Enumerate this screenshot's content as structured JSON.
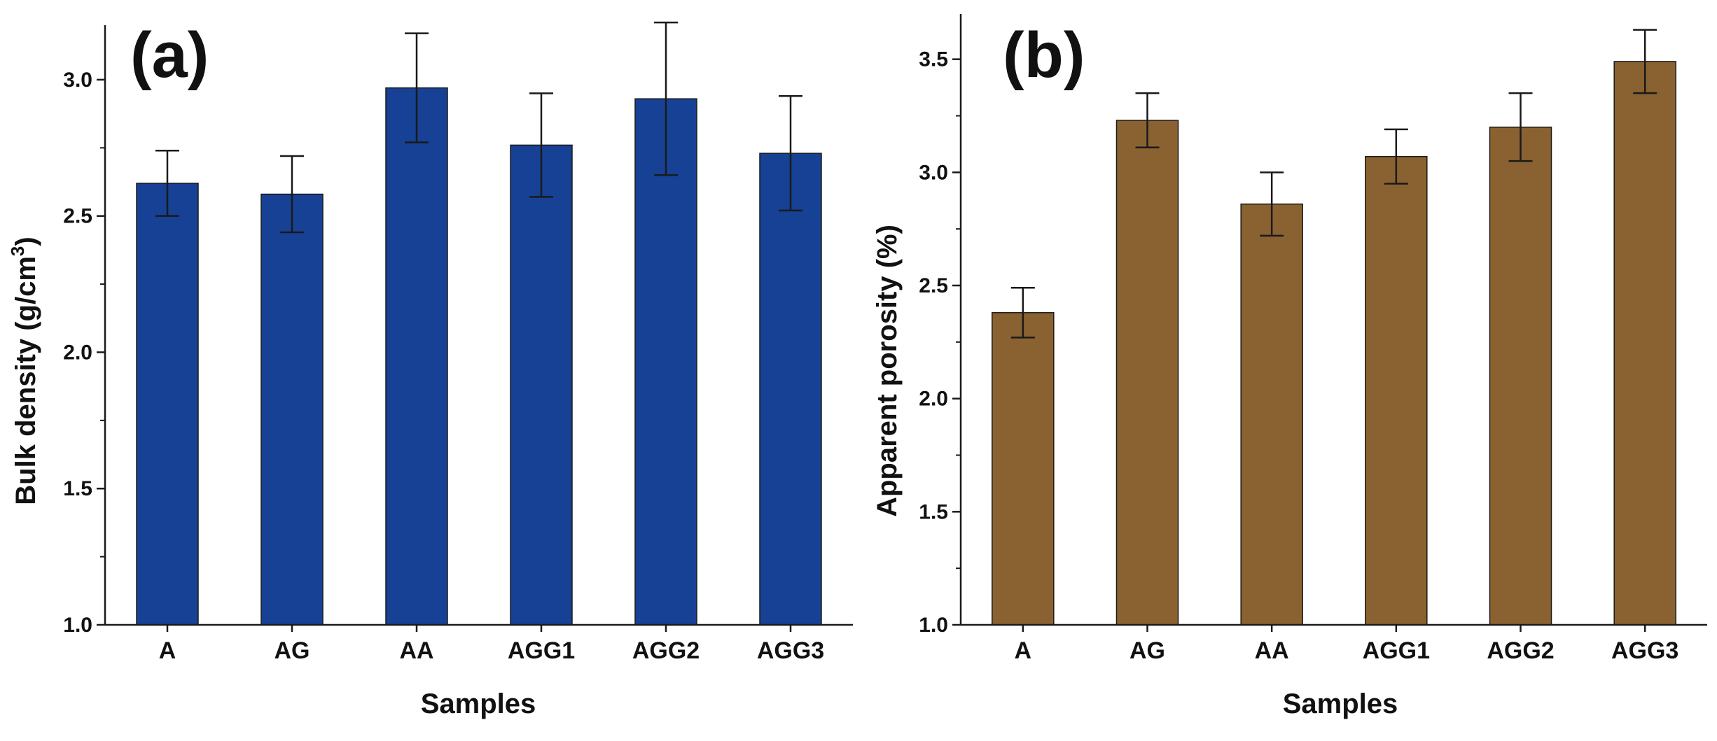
{
  "chart_data": [
    {
      "type": "bar",
      "panel_label": "(a)",
      "title": "",
      "xlabel": "Samples",
      "ylabel_main": "Bulk density (g/cm",
      "ylabel_sup": "3",
      "ylabel_close": ")",
      "categories": [
        "A",
        "AG",
        "AA",
        "AGG1",
        "AGG2",
        "AGG3"
      ],
      "values": [
        2.62,
        2.58,
        2.97,
        2.76,
        2.93,
        2.73
      ],
      "errors": [
        0.12,
        0.14,
        0.2,
        0.19,
        0.28,
        0.21
      ],
      "ylim": [
        1.0,
        3.2
      ],
      "yticks": [
        "1.0",
        "1.5",
        "2.0",
        "2.5",
        "3.0"
      ],
      "bar_color": "#164194",
      "grid": false
    },
    {
      "type": "bar",
      "panel_label": "(b)",
      "title": "",
      "xlabel": "Samples",
      "ylabel_main": "Apparent porosity (%)",
      "ylabel_sup": "",
      "ylabel_close": "",
      "categories": [
        "A",
        "AG",
        "AA",
        "AGG1",
        "AGG2",
        "AGG3"
      ],
      "values": [
        2.38,
        3.23,
        2.86,
        3.07,
        3.2,
        3.49
      ],
      "errors": [
        0.11,
        0.12,
        0.14,
        0.12,
        0.15,
        0.14
      ],
      "ylim": [
        1.0,
        3.7
      ],
      "yticks": [
        "1.0",
        "1.5",
        "2.0",
        "2.5",
        "3.0",
        "3.5"
      ],
      "bar_color": "#8a6231",
      "grid": false
    }
  ]
}
